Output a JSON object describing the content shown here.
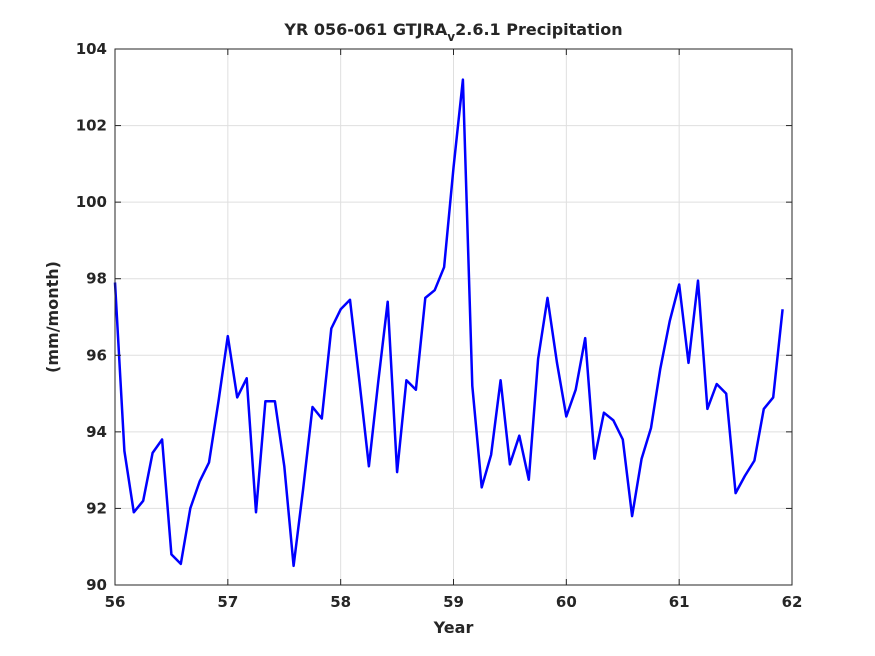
{
  "chart_data": {
    "type": "line",
    "title_main": "YR 056-061 GTJRA",
    "title_sub": "v",
    "title_tail": "2.6.1 Precipitation",
    "xlabel": "Year",
    "ylabel": "(mm/month)",
    "xlim": [
      56,
      62
    ],
    "ylim": [
      90,
      104
    ],
    "xticks": [
      "56",
      "57",
      "58",
      "59",
      "60",
      "61",
      "62"
    ],
    "yticks": [
      "90",
      "92",
      "94",
      "96",
      "98",
      "100",
      "102",
      "104"
    ],
    "grid": true,
    "line_color": "#0000ff",
    "series": [
      {
        "x": [
          56.0,
          56.083,
          56.167,
          56.25,
          56.333,
          56.417,
          56.5,
          56.583,
          56.667,
          56.75,
          56.833,
          56.917,
          57.0,
          57.083,
          57.167,
          57.25,
          57.333,
          57.417,
          57.5,
          57.583,
          57.667,
          57.75,
          57.833,
          57.917,
          58.0,
          58.083,
          58.167,
          58.25,
          58.333,
          58.417,
          58.5,
          58.583,
          58.667,
          58.75,
          58.833,
          58.917,
          59.0,
          59.083,
          59.167,
          59.25,
          59.333,
          59.417,
          59.5,
          59.583,
          59.667,
          59.75,
          59.833,
          59.917,
          60.0,
          60.083,
          60.167,
          60.25,
          60.333,
          60.417,
          60.5,
          60.583,
          60.667,
          60.75,
          60.833,
          60.917,
          61.0,
          61.083,
          61.167,
          61.25,
          61.333,
          61.417,
          61.5,
          61.583,
          61.667,
          61.75,
          61.833,
          61.917
        ],
        "y": [
          97.9,
          93.5,
          91.9,
          92.2,
          93.45,
          93.8,
          90.8,
          90.55,
          92.0,
          92.7,
          93.2,
          94.8,
          96.5,
          94.9,
          95.4,
          91.9,
          94.8,
          94.8,
          93.1,
          90.5,
          92.5,
          94.65,
          94.35,
          96.7,
          97.2,
          97.45,
          95.3,
          93.1,
          95.3,
          97.4,
          92.95,
          95.35,
          95.1,
          97.5,
          97.7,
          98.3,
          100.9,
          103.2,
          95.2,
          92.55,
          93.4,
          95.35,
          93.15,
          93.9,
          92.75,
          95.9,
          97.5,
          95.8,
          94.4,
          95.1,
          96.45,
          93.3,
          94.5,
          94.3,
          93.8,
          91.8,
          93.3,
          94.1,
          95.65,
          96.9,
          97.85,
          95.8,
          97.95,
          94.6,
          95.25,
          95.0,
          92.4,
          92.85,
          93.25,
          94.6,
          94.9,
          97.2
        ]
      }
    ]
  }
}
